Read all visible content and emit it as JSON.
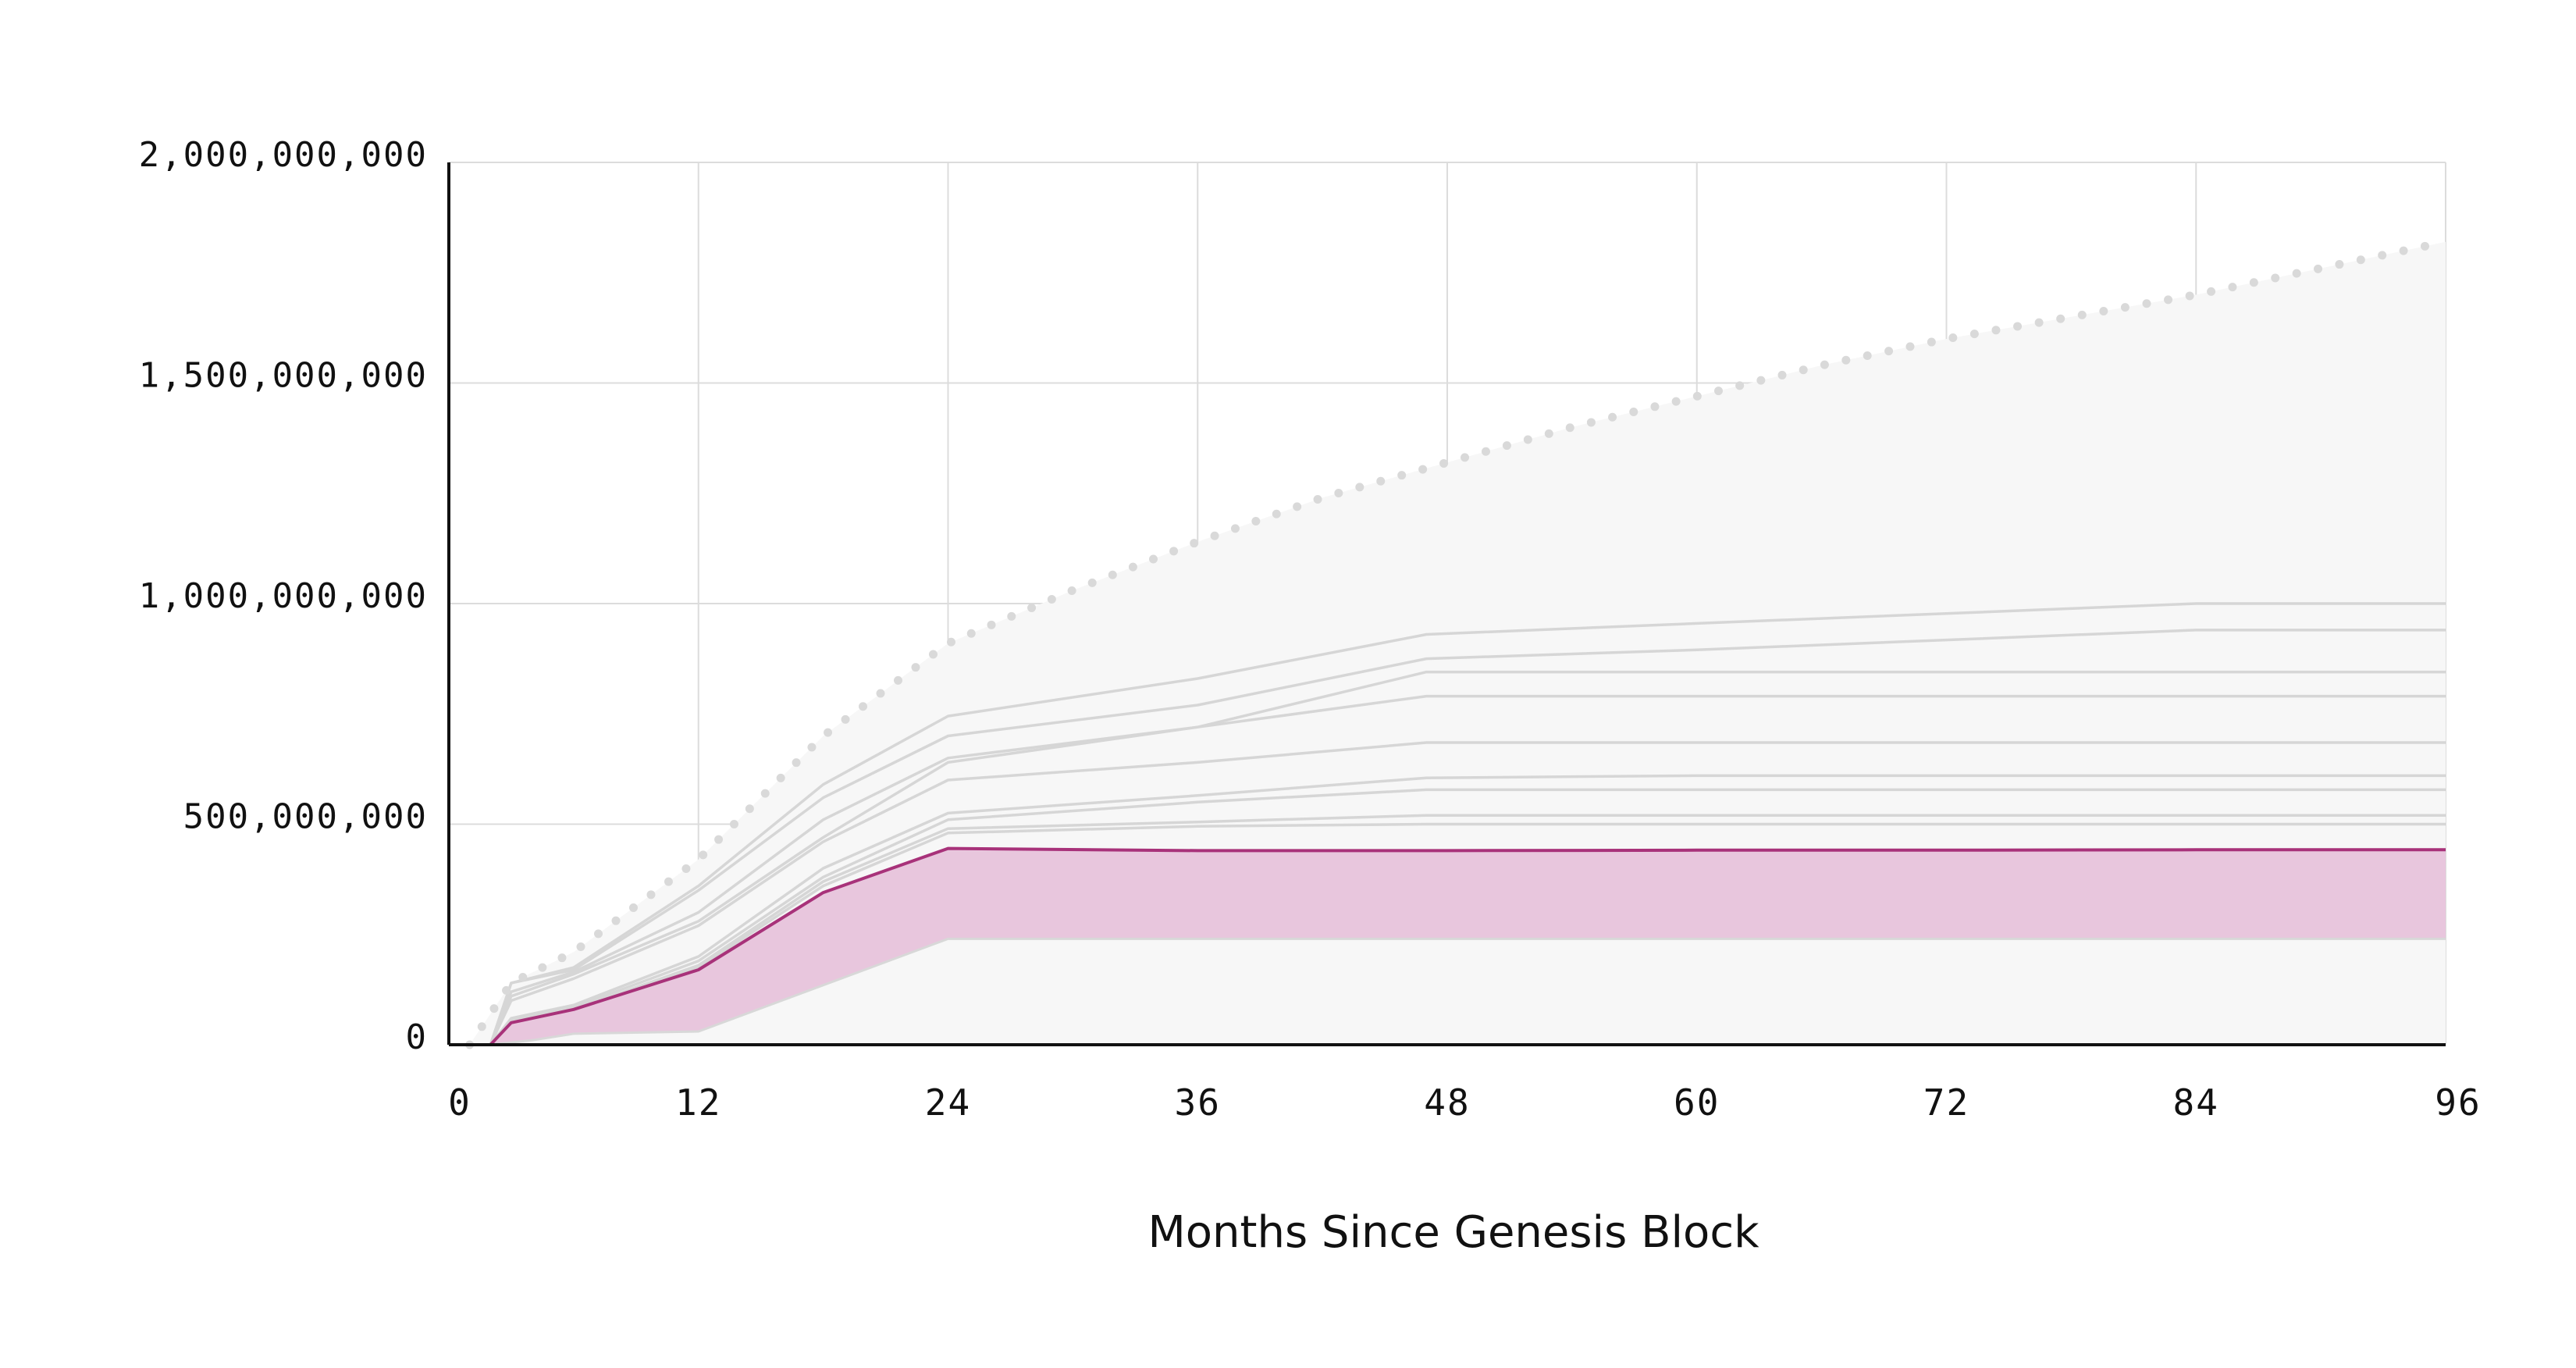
{
  "colors": {
    "grid": "#dcdcdc",
    "axis": "#111111",
    "envelope_fill": "#f7f7f7",
    "envelope_line": "#d9d9d9",
    "comparison_line": "#d6d6d6",
    "highlight_line": "#a8327a",
    "highlight_fill": "#e8c6dd",
    "highlight_lower_line": "#d8d8d8"
  },
  "chart_data": {
    "type": "line",
    "title": "",
    "xlabel": "Months Since Genesis Block",
    "ylabel": "",
    "xlim": [
      0,
      96
    ],
    "ylim": [
      0,
      2000000000
    ],
    "grid": true,
    "legend": "none",
    "x_ticks": [
      0,
      12,
      24,
      36,
      48,
      60,
      72,
      84,
      96
    ],
    "x_tick_labels": [
      "0",
      "12",
      "24",
      "36",
      "48",
      "60",
      "72",
      "84",
      "96"
    ],
    "y_ticks": [
      0,
      500000000,
      1000000000,
      1500000000,
      2000000000
    ],
    "y_tick_labels": [
      "0",
      "500,000,000",
      "1,000,000,000",
      "1,500,000,000",
      "2,000,000,000"
    ],
    "envelope": {
      "style": "dotted",
      "points": [
        [
          1,
          0
        ],
        [
          2,
          70000000
        ],
        [
          3,
          140000000
        ],
        [
          6,
          210000000
        ],
        [
          12,
          420000000
        ],
        [
          18,
          700000000
        ],
        [
          24,
          910000000
        ],
        [
          30,
          1030000000
        ],
        [
          36,
          1140000000
        ],
        [
          42,
          1240000000
        ],
        [
          48,
          1320000000
        ],
        [
          54,
          1400000000
        ],
        [
          60,
          1470000000
        ],
        [
          66,
          1540000000
        ],
        [
          72,
          1600000000
        ],
        [
          78,
          1650000000
        ],
        [
          84,
          1700000000
        ],
        [
          90,
          1760000000
        ],
        [
          96,
          1820000000
        ]
      ]
    },
    "comparison_series": [
      {
        "points": [
          [
            2,
            0
          ],
          [
            3,
            140000000
          ],
          [
            6,
            175000000
          ],
          [
            12,
            360000000
          ],
          [
            18,
            590000000
          ],
          [
            24,
            745000000
          ],
          [
            36,
            830000000
          ],
          [
            47,
            930000000
          ],
          [
            60,
            955000000
          ],
          [
            84,
            1000000000
          ],
          [
            96,
            1000000000
          ]
        ]
      },
      {
        "points": [
          [
            2,
            0
          ],
          [
            3,
            140000000
          ],
          [
            6,
            170000000
          ],
          [
            12,
            350000000
          ],
          [
            18,
            560000000
          ],
          [
            24,
            700000000
          ],
          [
            36,
            770000000
          ],
          [
            47,
            875000000
          ],
          [
            60,
            895000000
          ],
          [
            84,
            940000000
          ],
          [
            96,
            940000000
          ]
        ]
      },
      {
        "points": [
          [
            2,
            0
          ],
          [
            3,
            120000000
          ],
          [
            6,
            165000000
          ],
          [
            12,
            300000000
          ],
          [
            18,
            510000000
          ],
          [
            24,
            650000000
          ],
          [
            36,
            720000000
          ],
          [
            47,
            845000000
          ],
          [
            60,
            845000000
          ],
          [
            84,
            845000000
          ],
          [
            96,
            845000000
          ]
        ]
      },
      {
        "points": [
          [
            2,
            0
          ],
          [
            3,
            110000000
          ],
          [
            6,
            160000000
          ],
          [
            12,
            280000000
          ],
          [
            18,
            470000000
          ],
          [
            24,
            640000000
          ],
          [
            36,
            720000000
          ],
          [
            47,
            790000000
          ],
          [
            60,
            790000000
          ],
          [
            84,
            790000000
          ],
          [
            96,
            790000000
          ]
        ]
      },
      {
        "points": [
          [
            2,
            0
          ],
          [
            3,
            100000000
          ],
          [
            6,
            150000000
          ],
          [
            12,
            270000000
          ],
          [
            18,
            460000000
          ],
          [
            24,
            600000000
          ],
          [
            36,
            640000000
          ],
          [
            47,
            685000000
          ],
          [
            60,
            685000000
          ],
          [
            84,
            685000000
          ],
          [
            96,
            685000000
          ]
        ]
      },
      {
        "points": [
          [
            2,
            0
          ],
          [
            3,
            60000000
          ],
          [
            6,
            90000000
          ],
          [
            12,
            200000000
          ],
          [
            18,
            400000000
          ],
          [
            24,
            525000000
          ],
          [
            36,
            565000000
          ],
          [
            47,
            605000000
          ],
          [
            60,
            610000000
          ],
          [
            84,
            610000000
          ],
          [
            96,
            610000000
          ]
        ]
      },
      {
        "points": [
          [
            2,
            0
          ],
          [
            3,
            55000000
          ],
          [
            6,
            85000000
          ],
          [
            12,
            190000000
          ],
          [
            18,
            380000000
          ],
          [
            24,
            510000000
          ],
          [
            36,
            550000000
          ],
          [
            47,
            578000000
          ],
          [
            60,
            578000000
          ],
          [
            84,
            578000000
          ],
          [
            96,
            578000000
          ]
        ]
      },
      {
        "points": [
          [
            2,
            0
          ],
          [
            3,
            50000000
          ],
          [
            6,
            80000000
          ],
          [
            12,
            180000000
          ],
          [
            18,
            370000000
          ],
          [
            24,
            490000000
          ],
          [
            36,
            505000000
          ],
          [
            47,
            520000000
          ],
          [
            60,
            520000000
          ],
          [
            84,
            520000000
          ],
          [
            96,
            520000000
          ]
        ]
      },
      {
        "points": [
          [
            2,
            0
          ],
          [
            3,
            45000000
          ],
          [
            6,
            75000000
          ],
          [
            12,
            175000000
          ],
          [
            18,
            360000000
          ],
          [
            24,
            480000000
          ],
          [
            36,
            495000000
          ],
          [
            47,
            500000000
          ],
          [
            60,
            500000000
          ],
          [
            84,
            500000000
          ],
          [
            96,
            500000000
          ]
        ]
      }
    ],
    "highlight_series": {
      "upper": [
        [
          2,
          0
        ],
        [
          3,
          50000000
        ],
        [
          6,
          80000000
        ],
        [
          12,
          170000000
        ],
        [
          18,
          345000000
        ],
        [
          24,
          445000000
        ],
        [
          36,
          440000000
        ],
        [
          48,
          440000000
        ],
        [
          60,
          441000000
        ],
        [
          72,
          441000000
        ],
        [
          84,
          442000000
        ],
        [
          96,
          442000000
        ]
      ],
      "lower": [
        [
          2,
          0
        ],
        [
          4,
          10000000
        ],
        [
          6,
          25000000
        ],
        [
          12,
          30000000
        ],
        [
          24,
          240000000
        ],
        [
          36,
          240000000
        ],
        [
          48,
          240000000
        ],
        [
          60,
          240000000
        ],
        [
          72,
          240000000
        ],
        [
          84,
          240000000
        ],
        [
          96,
          240000000
        ]
      ]
    }
  }
}
